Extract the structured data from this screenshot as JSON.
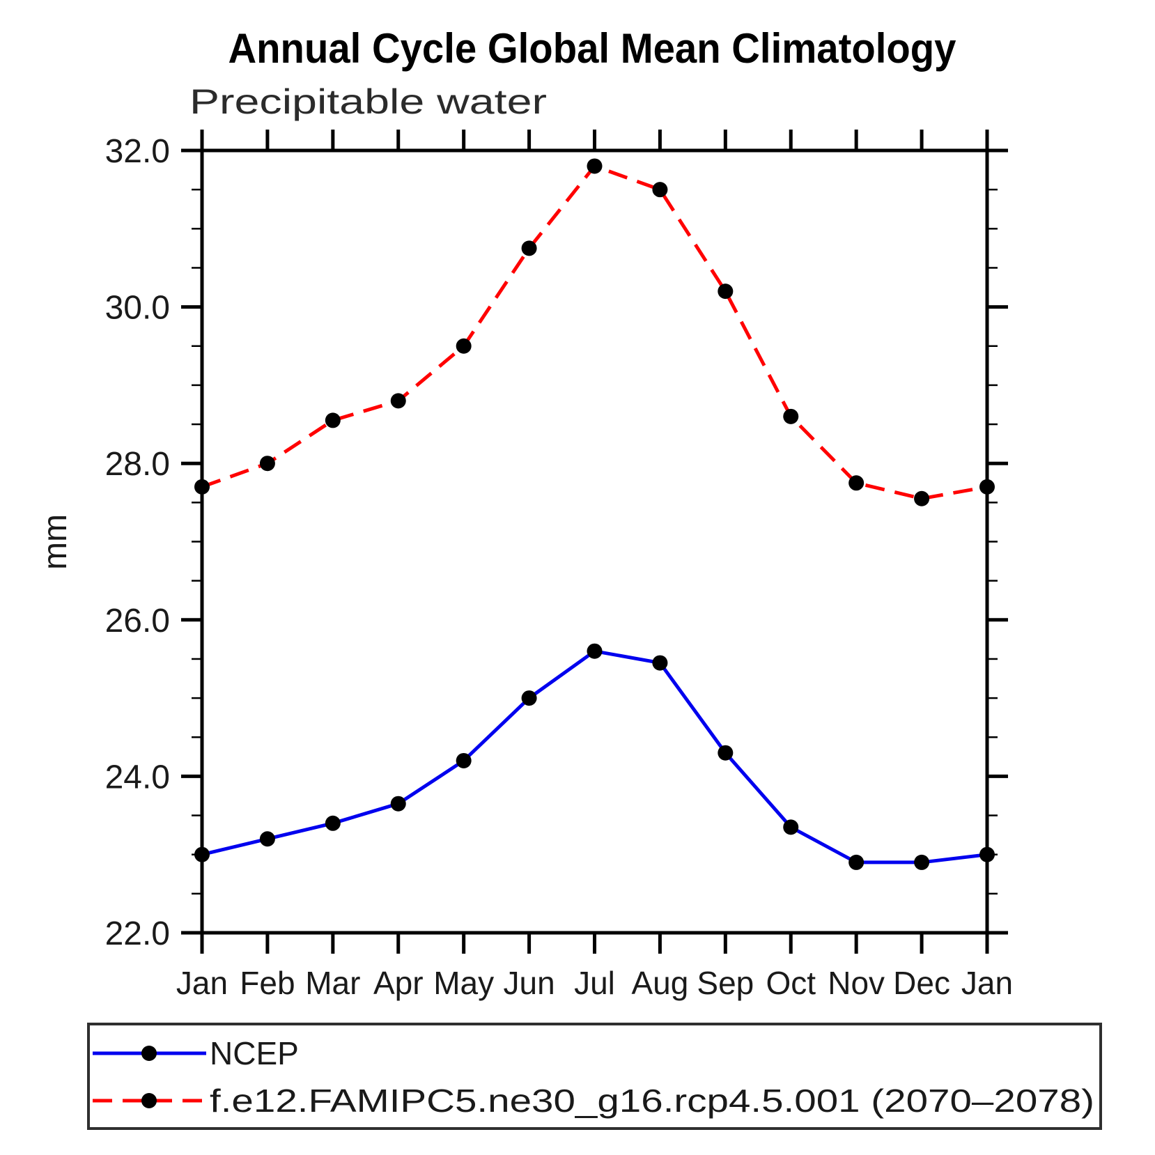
{
  "page": {
    "background_color": "#ffffff"
  },
  "chart_data": {
    "type": "line",
    "title": "Annual Cycle Global Mean Climatology",
    "subtitle": "Precipitable water",
    "xlabel": "",
    "ylabel": "mm",
    "x_categories": [
      "Jan",
      "Feb",
      "Mar",
      "Apr",
      "May",
      "Jun",
      "Jul",
      "Aug",
      "Sep",
      "Oct",
      "Nov",
      "Dec",
      "Jan"
    ],
    "ylim": [
      22.0,
      32.0
    ],
    "ytick_major_step": 2.0,
    "ytick_minor_step": 0.5,
    "ytick_labels": [
      "22.0",
      "24.0",
      "26.0",
      "28.0",
      "30.0",
      "32.0"
    ],
    "grid": false,
    "legend_position": "bottom",
    "axis_color": "#000000",
    "marker_color": "#000000",
    "series": [
      {
        "name": "NCEP",
        "color": "#0000ee",
        "line_style": "solid",
        "marker": "circle",
        "values": [
          23.0,
          23.2,
          23.4,
          23.65,
          24.2,
          25.0,
          25.6,
          25.45,
          24.3,
          23.35,
          22.9,
          22.9,
          23.0
        ]
      },
      {
        "name": "f.e12.FAMIPC5.ne30_g16.rcp4.5.001 (2070–2078)",
        "color": "#ff0000",
        "line_style": "dashed",
        "marker": "circle",
        "values": [
          27.7,
          28.0,
          28.55,
          28.8,
          29.5,
          30.75,
          31.8,
          31.5,
          30.2,
          28.6,
          27.75,
          27.55,
          27.7
        ]
      }
    ]
  }
}
